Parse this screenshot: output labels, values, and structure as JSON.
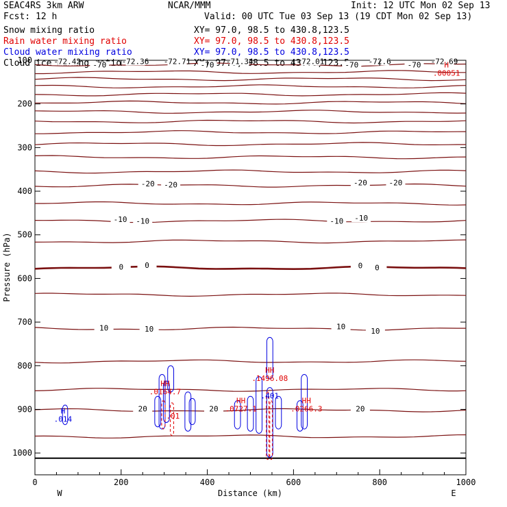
{
  "header": {
    "left_title": "SEAC4RS  3km ARW",
    "center_title": "NCAR/MMM",
    "init": "Init: 12 UTC Mon 02 Sep 13",
    "fcst": "Fcst:   12 h",
    "valid": "Valid: 00 UTC Tue 03 Sep 13 (19 CDT Mon 02 Sep 13)"
  },
  "legend": [
    {
      "label": "Snow mixing ratio",
      "xy": "XY=  97.0, 98.5 to 430.8,123.5",
      "color": "#000000"
    },
    {
      "label": "Rain water mixing ratio",
      "xy": "XY=  97.0, 98.5 to 430.8,123.5",
      "color": "#e00000"
    },
    {
      "label": "Cloud water mixing ratio",
      "xy": "XY=  97.0, 98.5 to 430.8,123.5",
      "color": "#0000e0"
    },
    {
      "label": "Cloud ice mixing ratio",
      "xy": "XY=  97.0, 98.5 to 430.8,123.5",
      "color": "#000000"
    }
  ],
  "chart_data": {
    "type": "line",
    "title": "",
    "xlabel": "Distance (km)",
    "ylabel": "Pressure (hPa)",
    "xlim": [
      0,
      1000
    ],
    "ylim": [
      1050,
      100
    ],
    "x_ticks": [
      0,
      200,
      400,
      600,
      800,
      1000
    ],
    "y_ticks": [
      100,
      200,
      300,
      400,
      500,
      600,
      700,
      800,
      900,
      1000
    ],
    "y_tick_labels": [
      "100",
      "200",
      "300",
      "400",
      "500",
      "600",
      "700",
      "800",
      "900",
      "1000"
    ],
    "x_end_labels": [
      "W",
      "E"
    ],
    "temperature_contour_color": "#7a1010",
    "surface_pressure_hPa": 1012,
    "temperature_contours_deg": [
      {
        "level": -70,
        "pressure": 110
      },
      {
        "level": -65,
        "pressure": 127
      },
      {
        "level": -60,
        "pressure": 143
      },
      {
        "level": -55,
        "pressure": 160
      },
      {
        "level": -50,
        "pressure": 178
      },
      {
        "level": -45,
        "pressure": 197
      },
      {
        "level": -40,
        "pressure": 218
      },
      {
        "level": -35,
        "pressure": 240
      },
      {
        "level": -30,
        "pressure": 265
      },
      {
        "level": -25,
        "pressure": 292
      },
      {
        "level": -20,
        "pressure": 322
      },
      {
        "level": -15,
        "pressure": 355
      },
      {
        "level": -20,
        "pressure": 387
      },
      {
        "level": -15,
        "pressure": 428
      },
      {
        "level": -10,
        "pressure": 468
      },
      {
        "level": -5,
        "pressure": 515
      },
      {
        "level": 0,
        "pressure": 576
      },
      {
        "level": 5,
        "pressure": 637
      },
      {
        "level": 10,
        "pressure": 715
      },
      {
        "level": 15,
        "pressure": 790
      },
      {
        "level": 20,
        "pressure": 855
      },
      {
        "level": 25,
        "pressure": 902
      },
      {
        "level": 30,
        "pressure": 962
      }
    ],
    "contour_labels": [
      {
        "text": "-72.42",
        "x": 75,
        "p": 107
      },
      {
        "text": "-70",
        "x": 150,
        "p": 115
      },
      {
        "text": "-72.36",
        "x": 233,
        "p": 107
      },
      {
        "text": "-72.71",
        "x": 330,
        "p": 107
      },
      {
        "text": "-70",
        "x": 400,
        "p": 115
      },
      {
        "text": "-71.34",
        "x": 475,
        "p": 107
      },
      {
        "text": "-72.01",
        "x": 640,
        "p": 107
      },
      {
        "text": "-70",
        "x": 735,
        "p": 115
      },
      {
        "text": "-72.6",
        "x": 800,
        "p": 107
      },
      {
        "text": "-70",
        "x": 880,
        "p": 115
      },
      {
        "text": "-72.69",
        "x": 950,
        "p": 107
      },
      {
        "text": "-20",
        "x": 262,
        "p": 387
      },
      {
        "text": "-20",
        "x": 315,
        "p": 390
      },
      {
        "text": "-20",
        "x": 755,
        "p": 385
      },
      {
        "text": "-20",
        "x": 837,
        "p": 385
      },
      {
        "text": "-10",
        "x": 198,
        "p": 469
      },
      {
        "text": "-10",
        "x": 250,
        "p": 473
      },
      {
        "text": "-10",
        "x": 700,
        "p": 473
      },
      {
        "text": "-10",
        "x": 757,
        "p": 466
      },
      {
        "text": "0",
        "x": 200,
        "p": 578
      },
      {
        "text": "0",
        "x": 260,
        "p": 574
      },
      {
        "text": "0",
        "x": 755,
        "p": 575
      },
      {
        "text": "0",
        "x": 794,
        "p": 580
      },
      {
        "text": "10",
        "x": 160,
        "p": 718
      },
      {
        "text": "10",
        "x": 265,
        "p": 720
      },
      {
        "text": "10",
        "x": 710,
        "p": 715
      },
      {
        "text": "10",
        "x": 790,
        "p": 725
      },
      {
        "text": "20",
        "x": 250,
        "p": 903
      },
      {
        "text": "20",
        "x": 415,
        "p": 903
      },
      {
        "text": "20",
        "x": 755,
        "p": 903
      }
    ],
    "rain_maxima": [
      {
        "text": "H",
        "value": ".00051",
        "x": 955,
        "p": 132
      },
      {
        "text": "HH",
        "value": ".0164.7",
        "x": 302,
        "p": 862
      },
      {
        "text": "HH",
        "value": ".1496.08",
        "x": 545,
        "p": 832
      },
      {
        "text": "HH",
        "value": ".0727.1",
        "x": 478,
        "p": 902
      },
      {
        "text": "HH",
        "value": ".0266.3",
        "x": 630,
        "p": 902
      },
      {
        "text": "",
        "value": ".01",
        "x": 320,
        "p": 918
      }
    ],
    "cloud_maxima": [
      {
        "text": "H",
        "value": ".014",
        "x": 65,
        "p": 925
      },
      {
        "text": "",
        "value": ".401",
        "x": 545,
        "p": 872
      }
    ]
  }
}
